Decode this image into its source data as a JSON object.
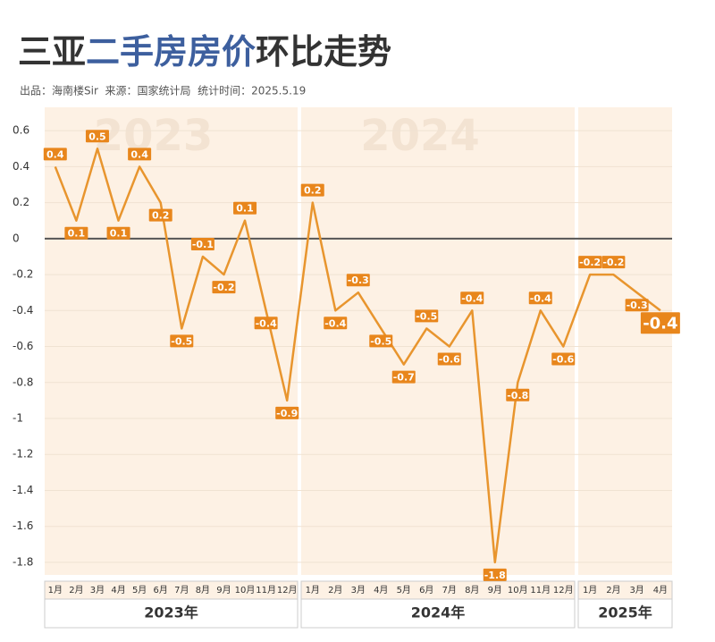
{
  "chart_data": {
    "type": "line",
    "title": [
      "三亚",
      "二手房房价",
      "环比走势"
    ],
    "subtitle": "出品：海南楼Sir  来源：国家统计局  统计时间：2025.5.19",
    "color": "#e8952e",
    "label_color": "#e8861c",
    "ylim": [
      -1.87,
      0.73
    ],
    "yticks": [
      0.6,
      0.4,
      0.2,
      0,
      -0.2,
      -0.4,
      -0.6,
      -0.8,
      -1.0,
      -1.2,
      -1.4,
      -1.6,
      -1.8
    ],
    "grid": true,
    "groups": [
      {
        "label": "2023年",
        "watermark": "2023",
        "categories": [
          "1月",
          "2月",
          "3月",
          "4月",
          "5月",
          "6月",
          "7月",
          "8月",
          "9月",
          "10月",
          "11月",
          "12月"
        ],
        "values": [
          0.4,
          0.1,
          0.5,
          0.1,
          0.4,
          0.2,
          -0.5,
          -0.1,
          -0.2,
          0.1,
          -0.4,
          -0.9
        ]
      },
      {
        "label": "2024年",
        "watermark": "2024",
        "categories": [
          "1月",
          "2月",
          "3月",
          "4月",
          "5月",
          "6月",
          "7月",
          "8月",
          "9月",
          "10月",
          "11月",
          "12月"
        ],
        "values": [
          0.2,
          -0.4,
          -0.3,
          -0.5,
          -0.7,
          -0.5,
          -0.6,
          -0.4,
          -1.8,
          -0.8,
          -0.4,
          -0.6
        ]
      },
      {
        "label": "2025年",
        "categories": [
          "1月",
          "2月",
          "3月",
          "4月"
        ],
        "values": [
          -0.2,
          -0.2,
          -0.3,
          -0.4
        ]
      }
    ]
  }
}
